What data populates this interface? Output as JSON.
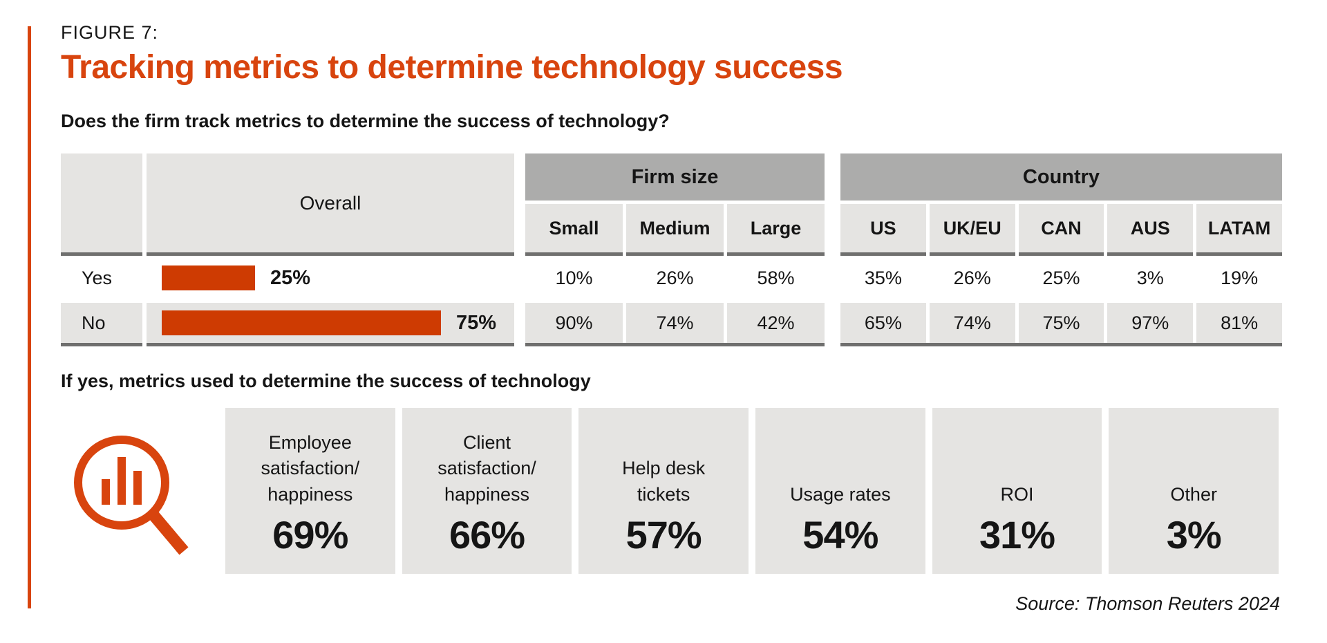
{
  "figure": {
    "label": "FIGURE 7:",
    "title": "Tracking metrics to determine technology success",
    "question": "Does the firm track metrics to determine the success of technology?",
    "followup": "If yes, metrics used to determine the success of technology",
    "source": "Source: Thomson Reuters 2024"
  },
  "colors": {
    "accent_orange": "#d8440e",
    "bar_orange": "#ce3b02",
    "group_header_gray": "#acacab",
    "cell_gray": "#e5e4e2",
    "rule_gray": "#6f6f6e"
  },
  "table": {
    "overall_header": "Overall",
    "groups": [
      {
        "label": "Firm size",
        "columns": [
          "Small",
          "Medium",
          "Large"
        ]
      },
      {
        "label": "Country",
        "columns": [
          "US",
          "UK/EU",
          "CAN",
          "AUS",
          "LATAM"
        ]
      }
    ],
    "rows": [
      {
        "label": "Yes",
        "overall": "25%",
        "overall_value": 25,
        "firm_size": [
          "10%",
          "26%",
          "58%"
        ],
        "country": [
          "35%",
          "26%",
          "25%",
          "3%",
          "19%"
        ]
      },
      {
        "label": "No",
        "overall": "75%",
        "overall_value": 75,
        "firm_size": [
          "90%",
          "74%",
          "42%"
        ],
        "country": [
          "65%",
          "74%",
          "75%",
          "97%",
          "81%"
        ]
      }
    ]
  },
  "metrics": [
    {
      "label": "Employee satisfaction/ happiness",
      "value": "69%"
    },
    {
      "label": "Client satisfaction/ happiness",
      "value": "66%"
    },
    {
      "label": "Help desk tickets",
      "value": "57%"
    },
    {
      "label": "Usage rates",
      "value": "54%"
    },
    {
      "label": "ROI",
      "value": "31%"
    },
    {
      "label": "Other",
      "value": "3%"
    }
  ],
  "chart_data": [
    {
      "type": "table",
      "title": "Does the firm track metrics to determine the success of technology?",
      "rows": [
        "Yes",
        "No"
      ],
      "columns": [
        "Overall",
        "Small",
        "Medium",
        "Large",
        "US",
        "UK/EU",
        "CAN",
        "AUS",
        "LATAM"
      ],
      "column_groups": {
        "Firm size": [
          "Small",
          "Medium",
          "Large"
        ],
        "Country": [
          "US",
          "UK/EU",
          "CAN",
          "AUS",
          "LATAM"
        ]
      },
      "values_pct": [
        [
          25,
          10,
          26,
          58,
          35,
          26,
          25,
          3,
          19
        ],
        [
          75,
          90,
          74,
          42,
          65,
          74,
          75,
          97,
          81
        ]
      ],
      "overall_bars": {
        "type": "bar",
        "categories": [
          "Yes",
          "No"
        ],
        "values": [
          25,
          75
        ],
        "color": "#ce3b02",
        "xlim": [
          0,
          100
        ]
      }
    },
    {
      "type": "bar",
      "title": "If yes, metrics used to determine the success of technology",
      "categories": [
        "Employee satisfaction/happiness",
        "Client satisfaction/happiness",
        "Help desk tickets",
        "Usage rates",
        "ROI",
        "Other"
      ],
      "values": [
        69,
        66,
        57,
        54,
        31,
        3
      ],
      "unit": "%",
      "source": "Source: Thomson Reuters 2024"
    }
  ]
}
